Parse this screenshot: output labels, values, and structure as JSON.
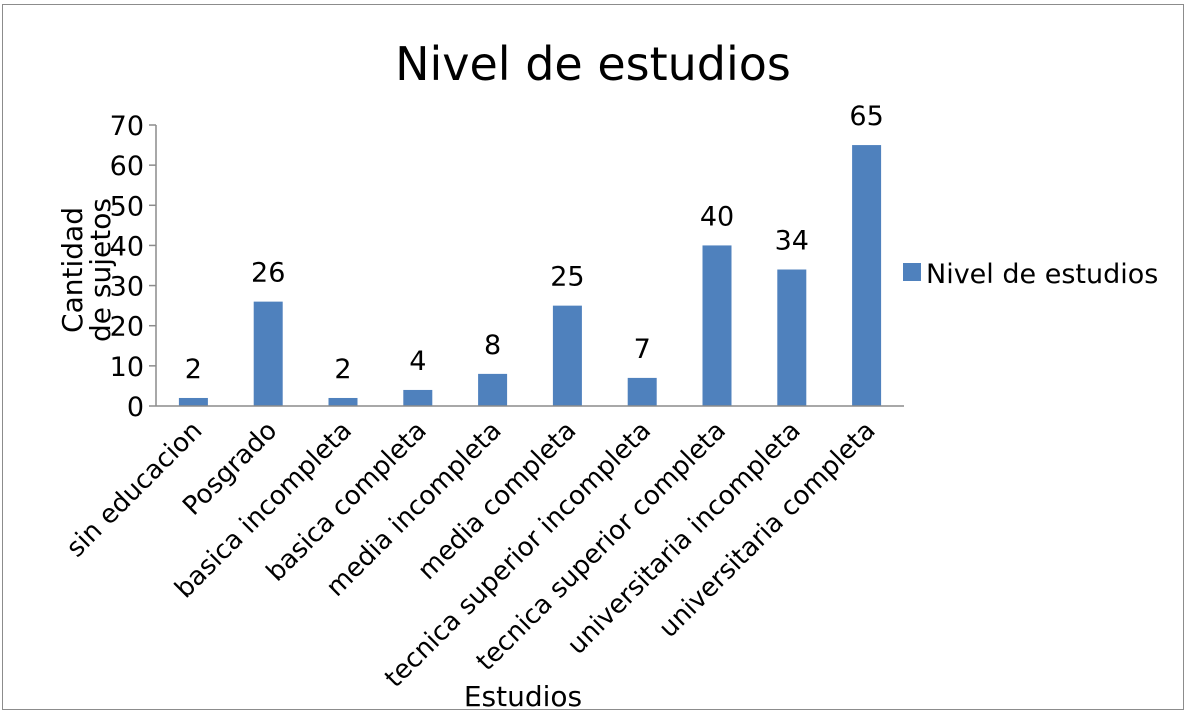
{
  "chart_data": {
    "type": "bar",
    "title": "Nivel de estudios",
    "xlabel": "Estudios",
    "ylabel_lines": [
      "Cantidad",
      "de sujetos"
    ],
    "categories": [
      "sin educacion",
      "Posgrado",
      "basica incompleta",
      "basica completa",
      "media incompleta",
      "media completa",
      "tecnica superior incompleta",
      "tecnica superior completa",
      "universitaria incompleta",
      "universitaria completa"
    ],
    "series": [
      {
        "name": "Nivel de estudios",
        "values": [
          2,
          26,
          2,
          4,
          8,
          25,
          7,
          40,
          34,
          65
        ]
      }
    ],
    "ylim": [
      0,
      70
    ],
    "yticks": [
      0,
      10,
      20,
      30,
      40,
      50,
      60,
      70
    ],
    "data_labels": true,
    "grid": false,
    "legend_position": "right",
    "bar_color": "#4f81bd"
  }
}
